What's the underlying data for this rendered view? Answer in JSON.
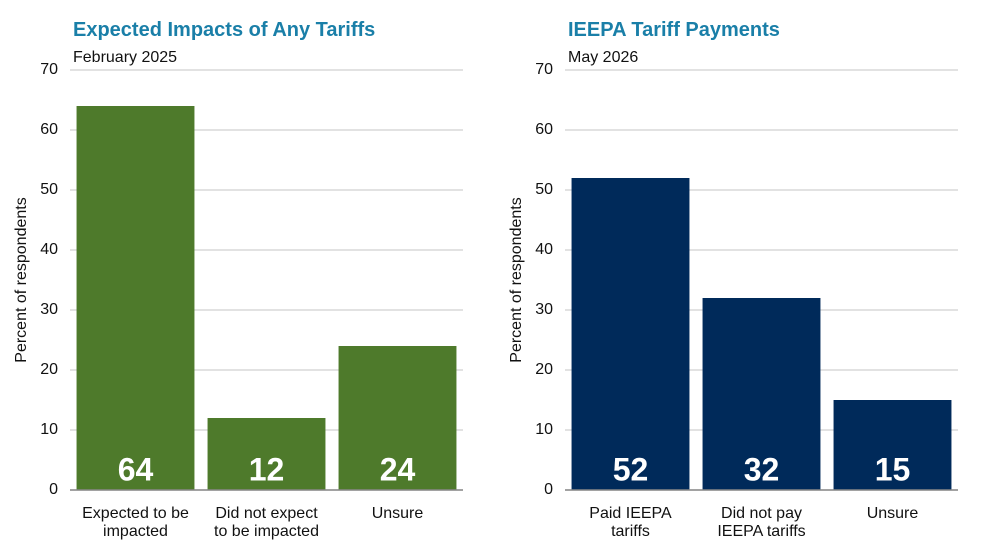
{
  "chart_data": [
    {
      "type": "bar",
      "title": "Expected Impacts of Any Tariffs",
      "subtitle": "February 2025",
      "y_label": "Percent of respondents",
      "categories": [
        "Expected to be impacted",
        "Did not expect to be impacted",
        "Unsure"
      ],
      "values": [
        64,
        12,
        24
      ],
      "color": "#4e7a2b",
      "ylim": [
        0,
        70
      ],
      "yticks": [
        0,
        10,
        20,
        30,
        40,
        50,
        60,
        70
      ],
      "grid": true
    },
    {
      "type": "bar",
      "title": "IEEPA Tariff Payments",
      "subtitle": "May 2026",
      "y_label": "Percent of respondents",
      "categories": [
        "Paid IEEPA tariffs",
        "Did not pay IEEPA tariffs",
        "Unsure"
      ],
      "values": [
        52,
        32,
        15
      ],
      "color": "#002a5a",
      "ylim": [
        0,
        70
      ],
      "yticks": [
        0,
        10,
        20,
        30,
        40,
        50,
        60,
        70
      ],
      "grid": true
    }
  ]
}
